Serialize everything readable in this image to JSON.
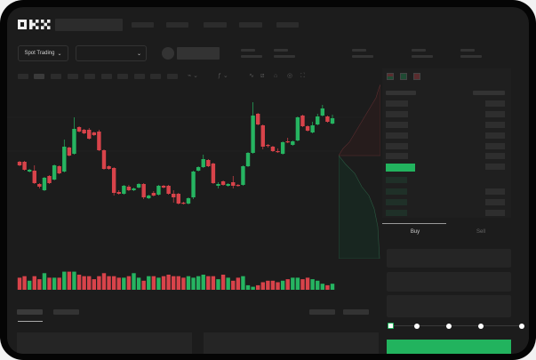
{
  "header": {
    "logo": "OKX",
    "nav_items": 5
  },
  "market_bar": {
    "mode_select": "Spot Trading",
    "pair_select": "",
    "chevron": "chevron-down-icon"
  },
  "toolbar": {
    "icons": [
      "candle-type-icon",
      "indicator-icon",
      "line-draw-icon",
      "ruler-icon",
      "camera-icon",
      "settings-icon",
      "fullscreen-icon"
    ]
  },
  "order_book": {
    "view_icons": [
      "both-sides-icon",
      "bids-only-icon",
      "asks-only-icon"
    ]
  },
  "trade_panel": {
    "buy_tab": "Buy",
    "sell_tab": "Sell",
    "leverage_steps": 5,
    "slider_value": 0
  },
  "colors": {
    "up": "#26b461",
    "down": "#d8434a",
    "accent": "#22b35e",
    "background": "#1c1c1c"
  },
  "chart_data": {
    "type": "candlestick",
    "candles": [
      [
        68,
        69,
        63,
        64
      ],
      [
        68,
        69,
        58,
        59
      ],
      [
        57,
        60,
        56,
        59
      ],
      [
        58,
        64,
        43,
        44
      ],
      [
        43,
        44,
        38,
        40
      ],
      [
        36,
        51,
        35,
        50
      ],
      [
        52,
        53,
        43,
        44
      ],
      [
        48,
        65,
        47,
        64
      ],
      [
        63,
        64,
        54,
        55
      ],
      [
        57,
        93,
        56,
        85
      ],
      [
        84,
        85,
        74,
        75
      ],
      [
        77,
        118,
        76,
        105
      ],
      [
        107,
        108,
        101,
        102
      ],
      [
        104,
        105,
        99,
        100
      ],
      [
        104,
        106,
        93,
        94
      ],
      [
        101,
        102,
        97,
        98
      ],
      [
        102,
        104,
        80,
        81
      ],
      [
        81,
        82,
        59,
        60
      ],
      [
        63,
        64,
        59,
        60
      ],
      [
        61,
        62,
        30,
        33
      ],
      [
        34,
        36,
        31,
        32
      ],
      [
        32,
        42,
        31,
        41
      ],
      [
        40,
        42,
        35,
        36
      ],
      [
        36,
        39,
        35,
        38
      ],
      [
        39,
        44,
        38,
        43
      ],
      [
        43,
        44,
        26,
        28
      ],
      [
        27,
        31,
        26,
        30
      ],
      [
        33,
        35,
        29,
        30
      ],
      [
        31,
        42,
        30,
        41
      ],
      [
        41,
        42,
        38,
        39
      ],
      [
        41,
        42,
        31,
        32
      ],
      [
        32,
        36,
        22,
        28
      ],
      [
        32,
        33,
        20,
        21
      ],
      [
        22,
        23,
        20,
        21
      ],
      [
        21,
        28,
        20,
        27
      ],
      [
        28,
        58,
        26,
        57
      ],
      [
        58,
        63,
        57,
        62
      ],
      [
        62,
        76,
        61,
        71
      ],
      [
        70,
        71,
        62,
        63
      ],
      [
        66,
        67,
        43,
        44
      ],
      [
        41,
        45,
        38,
        43
      ],
      [
        46,
        47,
        41,
        42
      ],
      [
        41,
        44,
        40,
        43
      ],
      [
        45,
        52,
        38,
        41
      ],
      [
        42,
        43,
        40,
        41
      ],
      [
        42,
        64,
        41,
        63
      ],
      [
        63,
        79,
        62,
        78
      ],
      [
        78,
        135,
        77,
        120
      ],
      [
        122,
        123,
        109,
        110
      ],
      [
        109,
        110,
        82,
        85
      ],
      [
        87,
        88,
        84,
        86
      ],
      [
        85,
        86,
        79,
        80
      ],
      [
        80,
        83,
        78,
        79
      ],
      [
        77,
        91,
        76,
        90
      ],
      [
        91,
        95,
        89,
        90
      ],
      [
        87,
        92,
        86,
        91
      ],
      [
        92,
        119,
        91,
        118
      ],
      [
        120,
        121,
        107,
        108
      ],
      [
        108,
        109,
        102,
        103
      ],
      [
        101,
        113,
        100,
        109
      ],
      [
        110,
        122,
        109,
        119
      ],
      [
        120,
        132,
        119,
        128
      ],
      [
        119,
        120,
        112,
        113
      ],
      [
        111,
        121,
        110,
        117
      ]
    ],
    "volumes": [
      8,
      9,
      6,
      9,
      7,
      11,
      8,
      8,
      8,
      12,
      12,
      12,
      10,
      9,
      9,
      7,
      9,
      11,
      9,
      9,
      8,
      8,
      9,
      11,
      8,
      6,
      9,
      9,
      8,
      9,
      10,
      9,
      9,
      8,
      9,
      8,
      9,
      10,
      9,
      9,
      7,
      10,
      8,
      6,
      8,
      9,
      3,
      2,
      3,
      5,
      6,
      6,
      5,
      6,
      7,
      8,
      8,
      7,
      8,
      7,
      6,
      4,
      3,
      4
    ]
  }
}
